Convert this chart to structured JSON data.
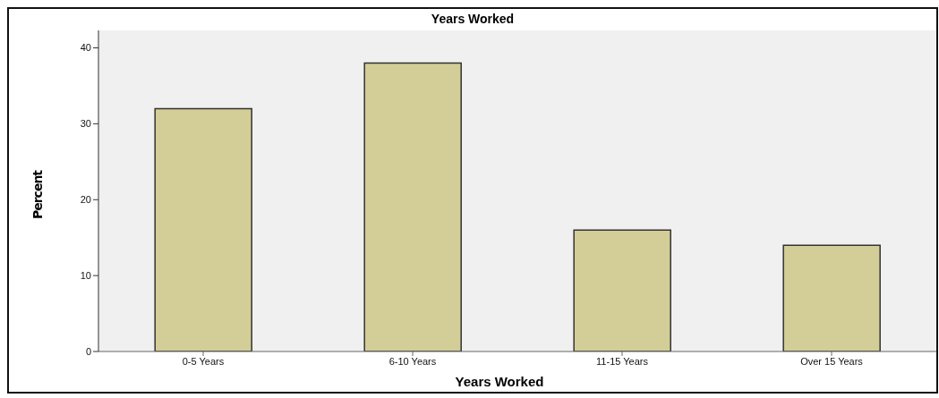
{
  "chart_data": {
    "type": "bar",
    "title": "Years Worked",
    "xlabel": "Years Worked",
    "ylabel": "Percent",
    "categories": [
      "0-5 Years",
      "6-10 Years",
      "11-15 Years",
      "Over 15 Years"
    ],
    "values": [
      32,
      38,
      16,
      14
    ],
    "color": "#d3cd97",
    "ylim": [
      0,
      42.3
    ],
    "yticks": [
      0,
      10,
      20,
      30,
      40
    ],
    "grid": false
  }
}
